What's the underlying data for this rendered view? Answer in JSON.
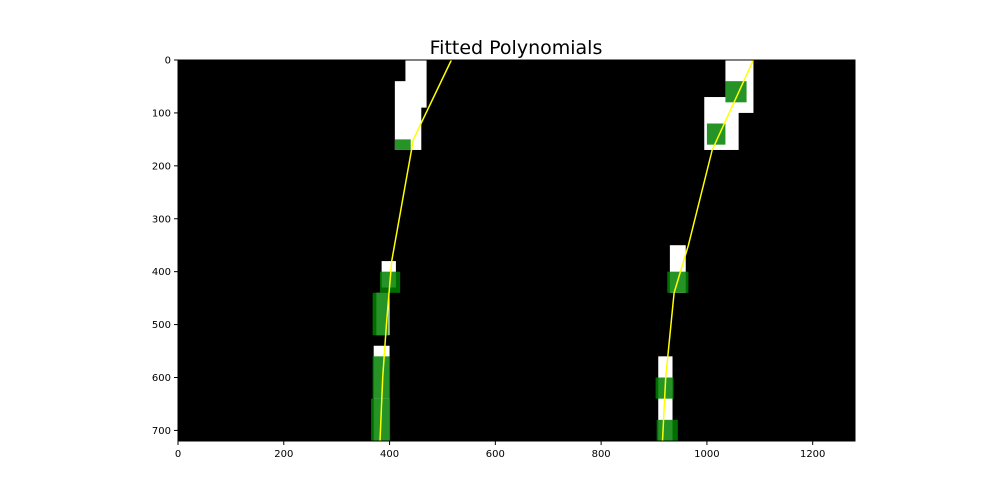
{
  "chart_data": {
    "type": "image",
    "title": "Fitted Polynomials",
    "xlabel": "",
    "ylabel": "",
    "xlim": [
      0,
      1280
    ],
    "ylim": [
      720,
      0
    ],
    "x_ticks": [
      0,
      200,
      400,
      600,
      800,
      1000,
      1200
    ],
    "y_ticks": [
      0,
      100,
      200,
      300,
      400,
      500,
      600,
      700
    ],
    "background_color": "#000000",
    "lane_pixel_color": "#ffffff",
    "window_color": "#008000",
    "fit_color": "#ffff00",
    "polynomials": [
      {
        "points": [
          [
            517,
            0
          ],
          [
            445,
            150
          ],
          [
            404,
            380
          ],
          [
            394,
            500
          ],
          [
            387,
            600
          ],
          [
            382,
            720
          ]
        ]
      },
      {
        "points": [
          [
            1088,
            0
          ],
          [
            1010,
            170
          ],
          [
            965,
            350
          ],
          [
            938,
            440
          ],
          [
            922,
            600
          ],
          [
            916,
            720
          ]
        ]
      }
    ],
    "windows": [
      {
        "lane": "left",
        "x": [
          365,
          401
        ],
        "y": [
          640,
          720
        ]
      },
      {
        "lane": "left",
        "x": [
          368,
          400
        ],
        "y": [
          560,
          640
        ]
      },
      {
        "lane": "left",
        "x": [
          368,
          398
        ],
        "y": [
          440,
          520
        ]
      },
      {
        "lane": "left",
        "x": [
          382,
          420
        ],
        "y": [
          400,
          440
        ]
      },
      {
        "lane": "left",
        "x": [
          410,
          440
        ],
        "y": [
          150,
          170
        ]
      },
      {
        "lane": "right",
        "x": [
          905,
          945
        ],
        "y": [
          680,
          720
        ]
      },
      {
        "lane": "right",
        "x": [
          903,
          937
        ],
        "y": [
          600,
          640
        ]
      },
      {
        "lane": "right",
        "x": [
          925,
          965
        ],
        "y": [
          400,
          440
        ]
      },
      {
        "lane": "right",
        "x": [
          1000,
          1035
        ],
        "y": [
          120,
          160
        ]
      },
      {
        "lane": "right",
        "x": [
          1035,
          1075
        ],
        "y": [
          40,
          80
        ]
      }
    ],
    "lane_pixels": [
      {
        "x": [
          370,
          400
        ],
        "y": [
          540,
          720
        ]
      },
      {
        "x": [
          375,
          400
        ],
        "y": [
          440,
          520
        ]
      },
      {
        "x": [
          385,
          412
        ],
        "y": [
          380,
          430
        ]
      },
      {
        "x": [
          410,
          460
        ],
        "y": [
          40,
          170
        ]
      },
      {
        "x": [
          430,
          470
        ],
        "y": [
          0,
          90
        ]
      },
      {
        "x": [
          908,
          935
        ],
        "y": [
          560,
          720
        ]
      },
      {
        "x": [
          930,
          960
        ],
        "y": [
          350,
          440
        ]
      },
      {
        "x": [
          995,
          1060
        ],
        "y": [
          70,
          170
        ]
      },
      {
        "x": [
          1035,
          1088
        ],
        "y": [
          0,
          100
        ]
      }
    ]
  }
}
